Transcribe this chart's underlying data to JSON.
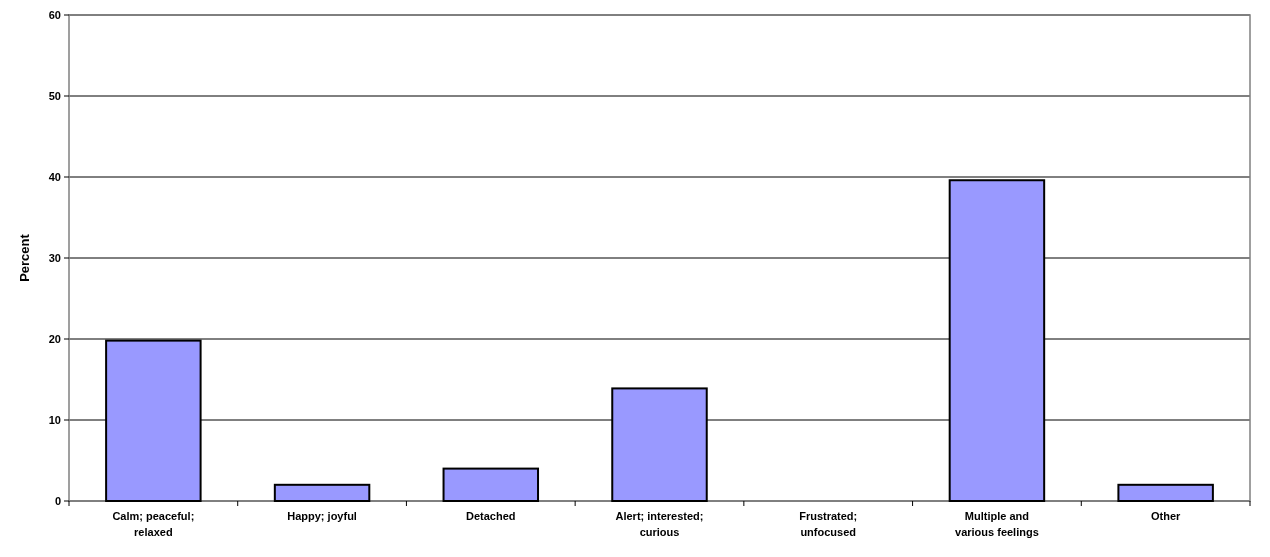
{
  "chart_data": {
    "type": "bar",
    "ylabel": "Percent",
    "categories": [
      "Calm; peaceful; relaxed",
      "Happy; joyful",
      "Detached",
      "Alert; interested; curious",
      "Frustrated; unfocused",
      "Multiple and various feelings",
      "Other"
    ],
    "values": [
      19.8,
      2,
      4,
      13.9,
      0,
      39.6,
      2
    ],
    "color": "#9999ff",
    "ylim": [
      0,
      60
    ],
    "yticks": [
      0,
      10,
      20,
      30,
      40,
      50,
      60
    ],
    "grid": "y"
  }
}
